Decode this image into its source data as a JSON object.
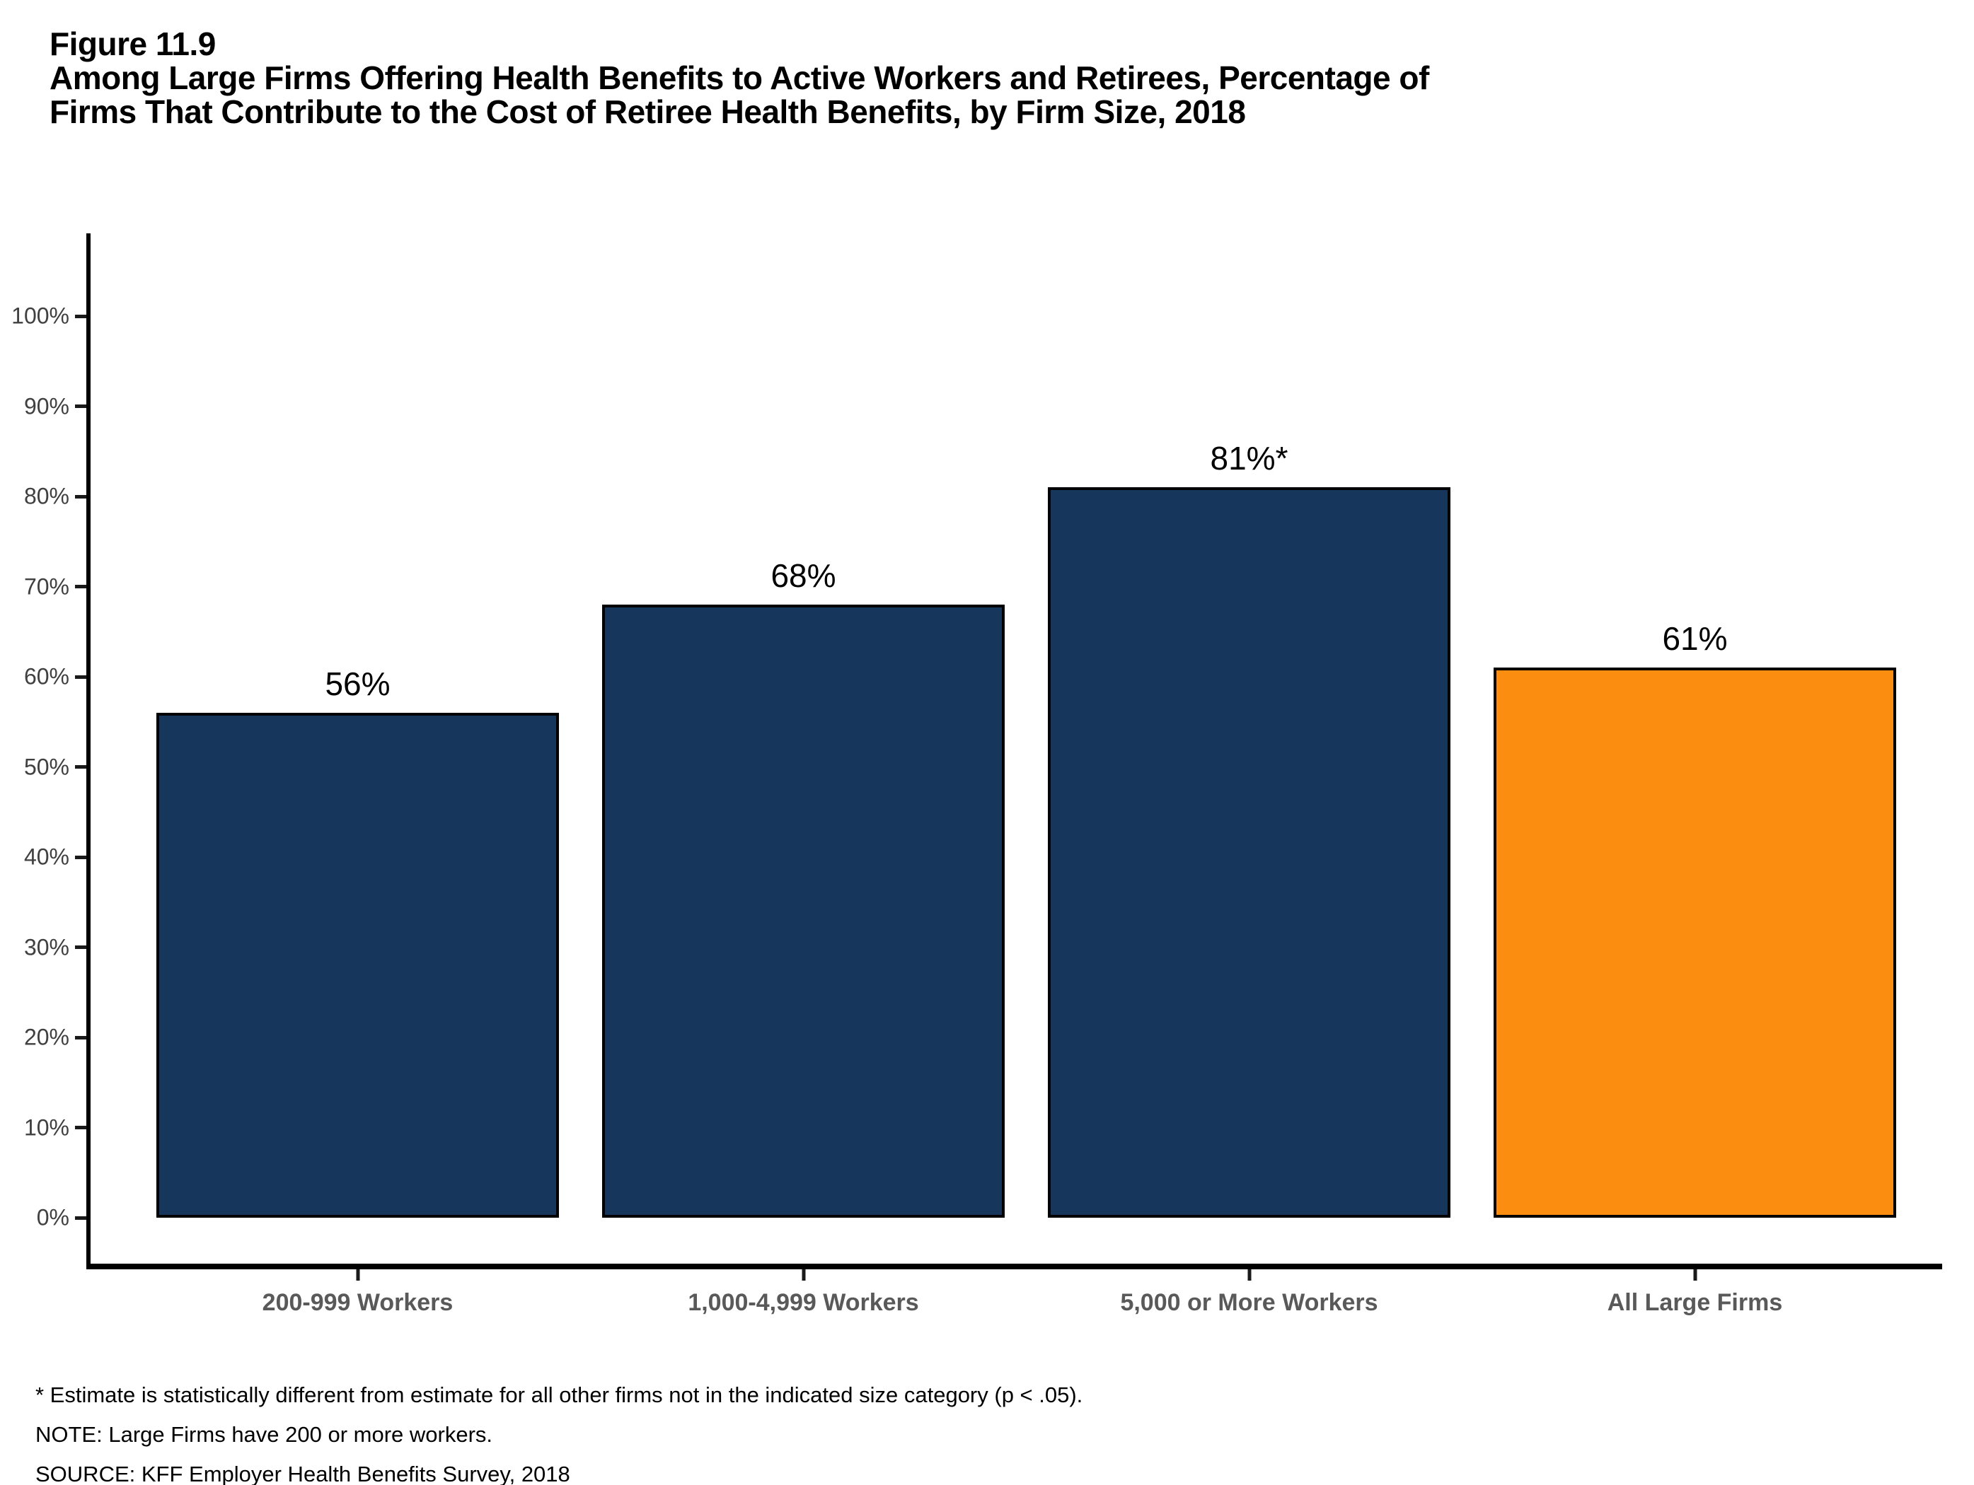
{
  "figure_label": "Figure 11.9",
  "title_lines": [
    "Among Large Firms Offering Health Benefits to Active Workers and Retirees, Percentage of",
    "Firms That Contribute to the Cost of Retiree Health Benefits, by Firm Size, 2018"
  ],
  "chart_data": {
    "type": "bar",
    "title": "Among Large Firms Offering Health Benefits to Active Workers and Retirees, Percentage of Firms That Contribute to the Cost of Retiree Health Benefits, by Firm Size, 2018",
    "categories": [
      "200-999 Workers",
      "1,000-4,999 Workers",
      "5,000 or More Workers",
      "All Large Firms"
    ],
    "values": [
      56,
      68,
      81,
      61
    ],
    "bar_labels": [
      "56%",
      "68%",
      "81%*",
      "61%"
    ],
    "bar_colors": [
      "#17365C",
      "#17365C",
      "#17365C",
      "#FB8D11"
    ],
    "xlabel": "",
    "ylabel": "",
    "ylim": [
      0,
      100
    ],
    "ytick_values": [
      0,
      10,
      20,
      30,
      40,
      50,
      60,
      70,
      80,
      90,
      100
    ],
    "ytick_labels": [
      "0%",
      "10%",
      "20%",
      "30%",
      "40%",
      "50%",
      "60%",
      "70%",
      "80%",
      "90%",
      "100%"
    ],
    "grid": false,
    "legend_position": "none"
  },
  "colors": {
    "bar_navy": "#17365C",
    "bar_orange": "#FB8D11",
    "bar_border": "#000000",
    "axis": "#000000",
    "ytick_label": "#404040",
    "category_label": "#595959",
    "value_label": "#000000"
  },
  "footnotes": [
    "* Estimate is statistically different from estimate for all other firms not in the indicated size category (p < .05).",
    "NOTE: Large Firms have 200 or more workers.",
    "SOURCE: KFF Employer Health Benefits Survey, 2018"
  ]
}
